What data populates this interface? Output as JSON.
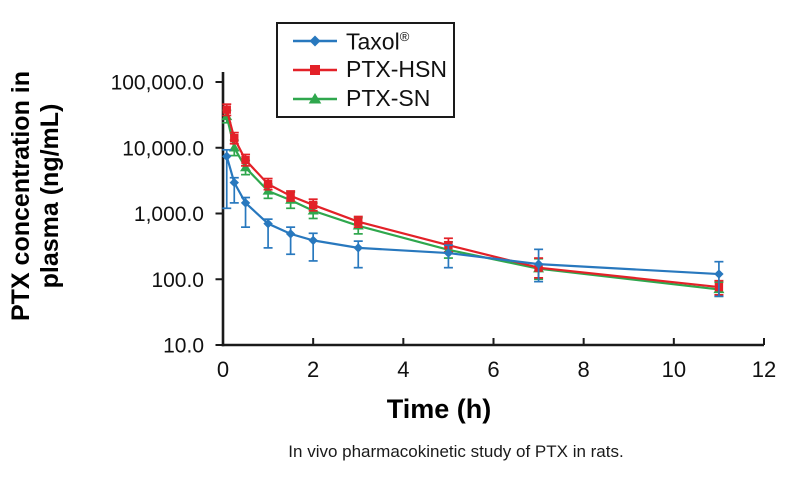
{
  "figure": {
    "caption": "In vivo pharmacokinetic study of PTX in rats.",
    "background_color": "#ffffff",
    "axis_color": "#1a1a1a"
  },
  "chart_data": {
    "type": "line",
    "title": "",
    "xlabel": "Time (h)",
    "ylabel": "PTX concentration in plasma (ng/mL)",
    "ylabel_lines": [
      "PTX concentration in",
      "plasma (ng/mL)"
    ],
    "grid": false,
    "legend_position": "top-inside",
    "x_axis": {
      "min": 0,
      "max": 12,
      "ticks": [
        0,
        2,
        4,
        6,
        8,
        10,
        12
      ],
      "tick_labels": [
        "0",
        "2",
        "4",
        "6",
        "8",
        "10",
        "12"
      ]
    },
    "y_axis": {
      "scale": "log",
      "min": 10,
      "max": 100000,
      "ticks": [
        100000,
        10000,
        1000,
        100,
        10
      ],
      "tick_labels": [
        "100,000.0",
        "10,000.0",
        "1,000.0",
        "100.0",
        "10.0"
      ]
    },
    "x_hours": [
      0.083,
      0.25,
      0.5,
      1,
      1.5,
      2,
      3,
      5,
      7,
      11
    ],
    "series": [
      {
        "name": "Taxol",
        "name_sup": "®",
        "marker": "diamond",
        "color": "#2878be",
        "values": [
          7400,
          2950,
          1450,
          700,
          490,
          390,
          300,
          250,
          170,
          120
        ],
        "err_low": [
          1200,
          1450,
          620,
          300,
          240,
          190,
          150,
          150,
          92,
          55
        ],
        "err_high": [
          9300,
          3500,
          1750,
          820,
          620,
          500,
          380,
          330,
          285,
          185
        ]
      },
      {
        "name": "PTX-HSN",
        "name_sup": "",
        "marker": "square",
        "color": "#e32128",
        "values": [
          38000,
          14000,
          6500,
          2800,
          1850,
          1350,
          750,
          330,
          150,
          76
        ],
        "err_low": [
          31000,
          11500,
          5300,
          2300,
          1550,
          1100,
          620,
          260,
          105,
          58
        ],
        "err_high": [
          46000,
          17000,
          7900,
          3400,
          2200,
          1650,
          900,
          420,
          210,
          95
        ]
      },
      {
        "name": "PTX-SN",
        "name_sup": "",
        "marker": "triangle",
        "color": "#2fa74d",
        "values": [
          30000,
          10000,
          5000,
          2200,
          1600,
          1100,
          650,
          280,
          145,
          70
        ],
        "err_low": [
          24000,
          7600,
          3900,
          1700,
          1200,
          840,
          490,
          210,
          100,
          55
        ],
        "err_high": [
          37000,
          13000,
          6400,
          2800,
          2100,
          1440,
          860,
          370,
          205,
          90
        ]
      }
    ]
  }
}
